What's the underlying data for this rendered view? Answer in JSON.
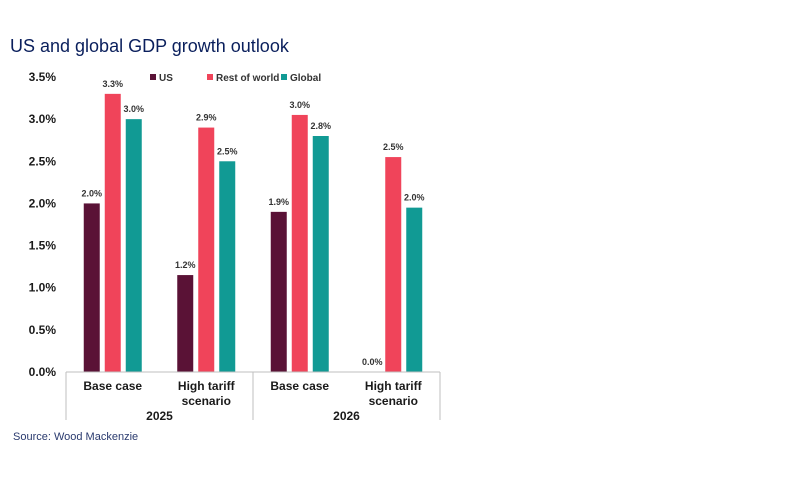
{
  "title": "US and global GDP growth outlook",
  "source": "Source: Wood Mackenzie",
  "chart_data": {
    "type": "bar",
    "title": "US and global GDP growth outlook",
    "xlabel": "",
    "ylabel": "",
    "ylim": [
      0,
      3.5
    ],
    "yticks": [
      "0.0%",
      "0.5%",
      "1.0%",
      "1.5%",
      "2.0%",
      "2.5%",
      "3.0%",
      "3.5%"
    ],
    "ytick_values": [
      0,
      0.5,
      1.0,
      1.5,
      2.0,
      2.5,
      3.0,
      3.5
    ],
    "categories": [
      "Base case",
      "High tariff scenario",
      "Base case",
      "High tariff scenario"
    ],
    "category_lines": [
      [
        "Base case"
      ],
      [
        "High tariff",
        "scenario"
      ],
      [
        "Base case"
      ],
      [
        "High tariff",
        "scenario"
      ]
    ],
    "groups": [
      {
        "label": "2025",
        "categories": [
          0,
          1
        ]
      },
      {
        "label": "2026",
        "categories": [
          2,
          3
        ]
      }
    ],
    "series": [
      {
        "name": "US",
        "color": "#5a1236",
        "values": [
          2.0,
          1.15,
          1.9,
          0.0
        ],
        "labels": [
          "2.0%",
          "1.2%",
          "1.9%",
          "0.0%"
        ]
      },
      {
        "name": "Rest of world",
        "color": "#f0445a",
        "values": [
          3.3,
          2.9,
          3.05,
          2.55
        ],
        "labels": [
          "3.3%",
          "2.9%",
          "3.0%",
          "2.5%"
        ]
      },
      {
        "name": "Global",
        "color": "#119a94",
        "values": [
          3.0,
          2.5,
          2.8,
          1.95
        ],
        "labels": [
          "3.0%",
          "2.5%",
          "2.8%",
          "2.0%"
        ]
      }
    ],
    "legend_position": "top"
  }
}
